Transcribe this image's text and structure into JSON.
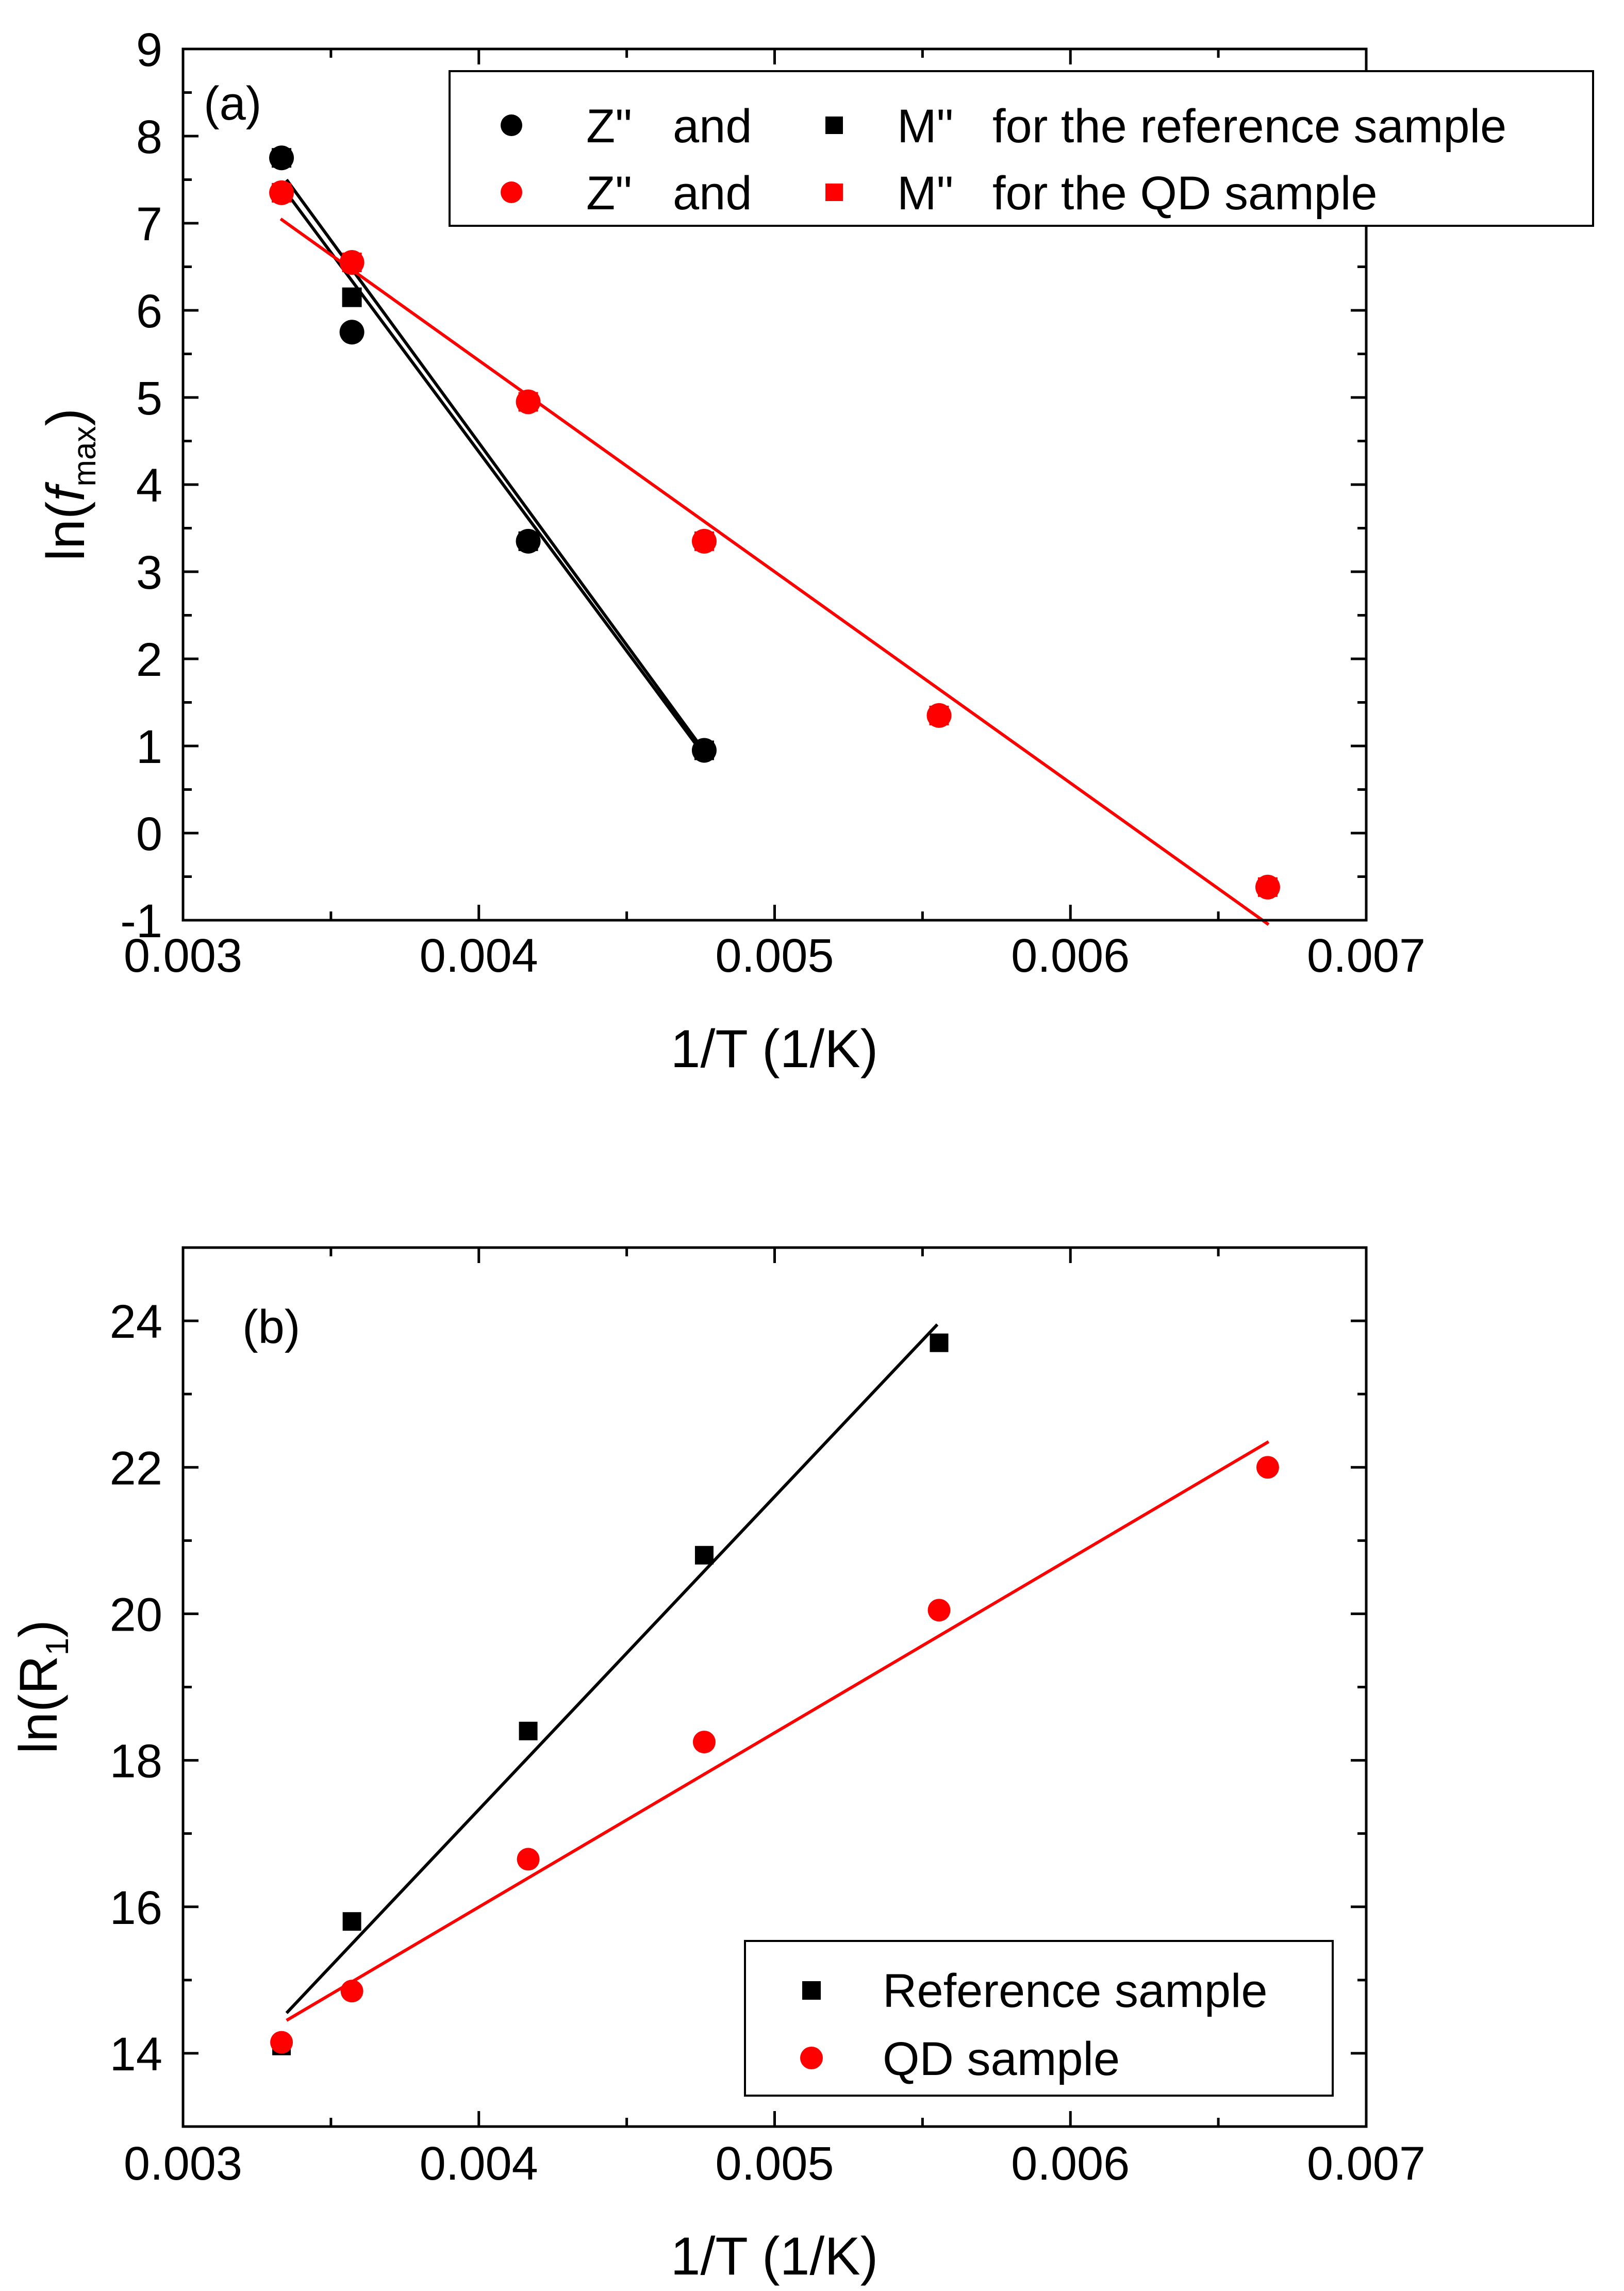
{
  "chart_data": [
    {
      "type": "scatter",
      "panel_label": "(a)",
      "xlabel": "1/T (1/K)",
      "ylabel_prefix": "ln(",
      "ylabel_italic": "f",
      "ylabel_sub": "max",
      "ylabel_suffix": ")",
      "xlim": [
        0.003,
        0.007
      ],
      "ylim": [
        -1,
        9
      ],
      "xticks": [
        0.003,
        0.004,
        0.005,
        0.006,
        0.007
      ],
      "xtick_labels": [
        "0.003",
        "0.004",
        "0.005",
        "0.006",
        "0.007"
      ],
      "yticks": [
        -1,
        0,
        1,
        2,
        3,
        4,
        5,
        6,
        7,
        8,
        9
      ],
      "ytick_labels": [
        "-1",
        "0",
        "1",
        "2",
        "3",
        "4",
        "5",
        "6",
        "7",
        "8",
        "9"
      ],
      "legend_position": "top-right",
      "legend_rows": [
        {
          "z": "Z\"",
          "and": "and",
          "m": "M\"",
          "desc": "for the reference sample",
          "color": "#000000"
        },
        {
          "z": "Z\"",
          "and": "and",
          "m": "M\"",
          "desc": "for the QD sample",
          "color": "#ff0000"
        }
      ],
      "series": [
        {
          "name": "Z\" reference",
          "marker": "circle",
          "color": "#000000",
          "x": [
            0.003333,
            0.003571,
            0.004167,
            0.004762
          ],
          "y": [
            7.75,
            5.75,
            3.35,
            0.95
          ]
        },
        {
          "name": "M\" reference",
          "marker": "square",
          "color": "#000000",
          "x": [
            0.003333,
            0.003571,
            0.004167,
            0.004762
          ],
          "y": [
            7.75,
            6.15,
            3.35,
            0.95
          ]
        },
        {
          "name": "Z\" QD",
          "marker": "circle",
          "color": "#ff0000",
          "x": [
            0.003333,
            0.003571,
            0.004167,
            0.004762,
            0.005556,
            0.006667
          ],
          "y": [
            7.35,
            6.55,
            4.95,
            3.35,
            1.35,
            -0.62
          ]
        },
        {
          "name": "M\" QD",
          "marker": "square",
          "color": "#ff0000",
          "x": [
            0.003333,
            0.003571,
            0.004167,
            0.004762,
            0.005556,
            0.006667
          ],
          "y": [
            7.35,
            6.55,
            4.95,
            3.35,
            1.35,
            -0.62
          ]
        }
      ],
      "fits": [
        {
          "name": "fit Z\" reference",
          "color": "#000000",
          "x": [
            0.00335,
            0.00476
          ],
          "y": [
            7.35,
            0.9
          ]
        },
        {
          "name": "fit M\" reference",
          "color": "#000000",
          "x": [
            0.00335,
            0.00476
          ],
          "y": [
            7.5,
            0.95
          ]
        },
        {
          "name": "fit QD",
          "color": "#ff0000",
          "x": [
            0.00333,
            0.00667
          ],
          "y": [
            7.05,
            -1.05
          ]
        }
      ]
    },
    {
      "type": "scatter",
      "panel_label": "(b)",
      "xlabel": "1/T (1/K)",
      "ylabel_prefix": "ln(R",
      "ylabel_sub": "1",
      "ylabel_suffix": ")",
      "xlim": [
        0.003,
        0.007
      ],
      "ylim": [
        13,
        25
      ],
      "xticks": [
        0.003,
        0.004,
        0.005,
        0.006,
        0.007
      ],
      "xtick_labels": [
        "0.003",
        "0.004",
        "0.005",
        "0.006",
        "0.007"
      ],
      "yticks": [
        14,
        16,
        18,
        20,
        22,
        24
      ],
      "ytick_labels": [
        "14",
        "16",
        "18",
        "20",
        "22",
        "24"
      ],
      "legend_position": "bottom-right",
      "legend_entries": [
        {
          "label": "Reference sample",
          "marker": "square",
          "color": "#000000"
        },
        {
          "label": "QD sample",
          "marker": "circle",
          "color": "#ff0000"
        }
      ],
      "series": [
        {
          "name": "Reference sample",
          "marker": "square",
          "color": "#000000",
          "x": [
            0.003333,
            0.003571,
            0.004167,
            0.004762,
            0.005556
          ],
          "y": [
            14.1,
            15.8,
            18.4,
            20.8,
            23.7
          ]
        },
        {
          "name": "QD sample",
          "marker": "circle",
          "color": "#ff0000",
          "x": [
            0.003333,
            0.003571,
            0.004167,
            0.004762,
            0.005556,
            0.006667
          ],
          "y": [
            14.15,
            14.85,
            16.65,
            18.25,
            20.05,
            22.0
          ]
        }
      ],
      "fits": [
        {
          "name": "fit reference",
          "color": "#000000",
          "x": [
            0.00335,
            0.00555
          ],
          "y": [
            14.55,
            23.95
          ]
        },
        {
          "name": "fit QD",
          "color": "#ff0000",
          "x": [
            0.00335,
            0.00667
          ],
          "y": [
            14.45,
            22.35
          ]
        }
      ]
    }
  ]
}
